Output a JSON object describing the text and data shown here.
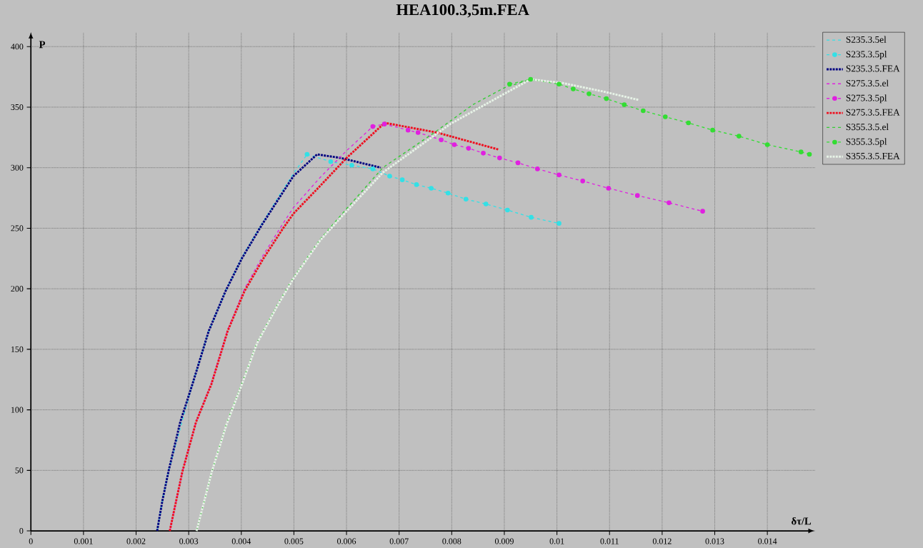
{
  "chart_data": {
    "type": "line",
    "title": "HEA100.3,5m.FEA",
    "xlabel": "δτ/L",
    "ylabel": "P",
    "xlim": [
      0,
      0.0149
    ],
    "ylim": [
      0,
      412
    ],
    "xticks": [
      0,
      0.001,
      0.002,
      0.003,
      0.004,
      0.005,
      0.006,
      0.007,
      0.008,
      0.009,
      0.01,
      0.011,
      0.012,
      0.013,
      0.014
    ],
    "yticks": [
      0,
      50,
      100,
      150,
      200,
      250,
      300,
      350,
      400
    ],
    "grid": true,
    "legend": "top right",
    "series": [
      {
        "name": "S235.3.5el",
        "color": "#33e0e6",
        "line_style": "dashed",
        "marker": "none",
        "x": [
          0.0024,
          0.0025,
          0.00262,
          0.00286,
          0.00307,
          0.00338,
          0.0037,
          0.00401,
          0.00438,
          0.00478,
          0.00499,
          0.00525
        ],
        "values": [
          0,
          25,
          50,
          88,
          121,
          165,
          198,
          226,
          253,
          281,
          295,
          311
        ]
      },
      {
        "name": "S235.3.5pl",
        "color": "#33e0e6",
        "line_style": "dashed",
        "marker": "circle",
        "x": [
          0.00525,
          0.0057,
          0.0061,
          0.0065,
          0.00682,
          0.00706,
          0.00733,
          0.00761,
          0.00793,
          0.00827,
          0.00865,
          0.00906,
          0.00951,
          0.01004
        ],
        "values": [
          311,
          305,
          302,
          299,
          293,
          290,
          286,
          283,
          279,
          274,
          270,
          265,
          259,
          254
        ]
      },
      {
        "name": "S235.3.5.FEA",
        "color": "#000080",
        "line_style": "dotted",
        "marker": "none",
        "x": [
          0.0024,
          0.0025,
          0.00262,
          0.00284,
          0.00307,
          0.00338,
          0.0037,
          0.00401,
          0.00438,
          0.00478,
          0.00499,
          0.00544,
          0.00589,
          0.00665
        ],
        "values": [
          0,
          25,
          50,
          90,
          121,
          165,
          198,
          225,
          252,
          279,
          293,
          311,
          308,
          300
        ]
      },
      {
        "name": "S275.3.5.el",
        "color": "#e020e0",
        "line_style": "dashed",
        "marker": "none",
        "x": [
          0.00264,
          0.00288,
          0.00314,
          0.00343,
          0.00374,
          0.00406,
          0.00442,
          0.00478,
          0.00499,
          0.0055,
          0.006,
          0.0065
        ],
        "values": [
          0,
          49,
          90,
          122,
          166,
          200,
          228,
          253,
          267,
          292,
          314,
          334
        ]
      },
      {
        "name": "S275.3.5pl",
        "color": "#e020e0",
        "line_style": "dashed",
        "marker": "circle",
        "x": [
          0.0065,
          0.00672,
          0.00717,
          0.00736,
          0.0078,
          0.00805,
          0.00832,
          0.0086,
          0.00891,
          0.00926,
          0.00963,
          0.01004,
          0.01049,
          0.01098,
          0.01153,
          0.01213,
          0.01277
        ],
        "values": [
          334,
          336,
          331,
          329,
          323,
          319,
          316,
          312,
          308,
          304,
          299,
          294,
          289,
          283,
          277,
          271,
          264
        ]
      },
      {
        "name": "S275.3.5.FEA",
        "color": "#ee1020",
        "line_style": "dotted",
        "marker": "none",
        "x": [
          0.00264,
          0.00288,
          0.00314,
          0.00343,
          0.00374,
          0.00406,
          0.00442,
          0.00478,
          0.00499,
          0.0055,
          0.006,
          0.00665,
          0.00673,
          0.00772,
          0.00889
        ],
        "values": [
          0,
          49,
          90,
          121,
          165,
          198,
          225,
          249,
          262,
          285,
          308,
          334,
          337,
          329,
          315
        ]
      },
      {
        "name": "S355.3.5.el",
        "color": "#33cc33",
        "line_style": "dashed",
        "marker": "none",
        "x": [
          0.00315,
          0.00344,
          0.00372,
          0.00402,
          0.0043,
          0.0047,
          0.005,
          0.0055,
          0.006,
          0.00669,
          0.00767,
          0.0084,
          0.009,
          0.0095
        ],
        "values": [
          0,
          49,
          89,
          123,
          156,
          188,
          210,
          241,
          266,
          300,
          329,
          352,
          366,
          373
        ]
      },
      {
        "name": "S355.3.5pl",
        "color": "#33dd33",
        "line_style": "dashed",
        "marker": "circle",
        "x": [
          0.0091,
          0.0095,
          0.01004,
          0.01031,
          0.01061,
          0.01094,
          0.01128,
          0.01164,
          0.01206,
          0.0125,
          0.01296,
          0.01346,
          0.014,
          0.01464,
          0.0148
        ],
        "values": [
          369,
          373,
          369,
          365,
          361,
          357,
          352,
          347,
          342,
          337,
          331,
          326,
          319,
          313,
          311
        ]
      },
      {
        "name": "S355.3.5.FEA",
        "color": "#e6f2e6",
        "line_style": "dotted",
        "marker": "none",
        "x": [
          0.00315,
          0.00344,
          0.00372,
          0.00402,
          0.0043,
          0.0047,
          0.005,
          0.0055,
          0.006,
          0.00669,
          0.00797,
          0.009,
          0.0095,
          0.0101,
          0.01087,
          0.01155
        ],
        "values": [
          0,
          49,
          88,
          122,
          155,
          187,
          209,
          240,
          264,
          296,
          336,
          361,
          373,
          370,
          363,
          356
        ]
      }
    ]
  }
}
